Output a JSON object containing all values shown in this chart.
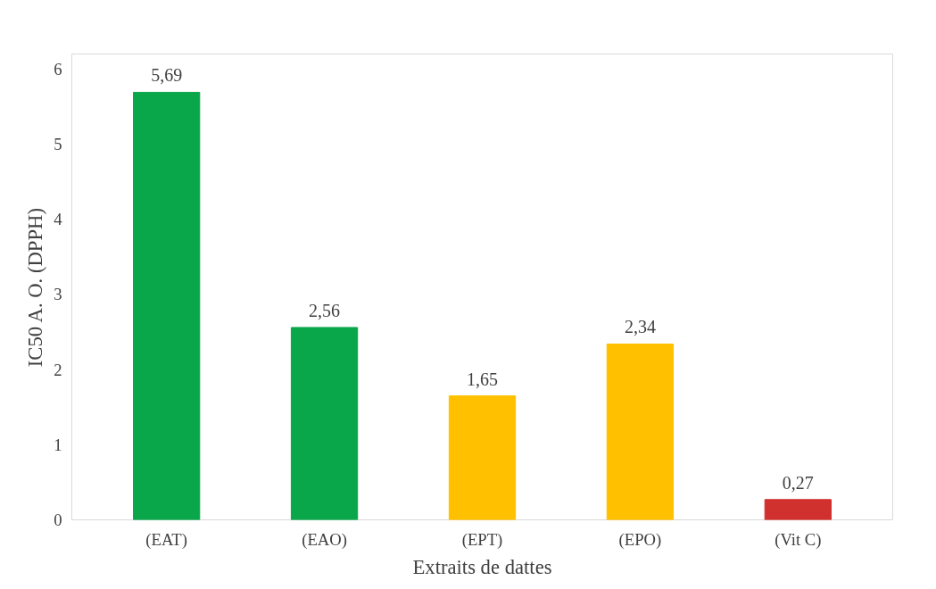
{
  "chart_data": {
    "type": "bar",
    "xlabel": "Extraits de dattes",
    "ylabel": "IC50 A. O. (DPPH)",
    "categories": [
      "(EAT)",
      "(EAO)",
      "(EPT)",
      "(EPO)",
      "(Vit C)"
    ],
    "values": [
      5.69,
      2.56,
      1.65,
      2.34,
      0.27
    ],
    "colors": [
      "#0aa64a",
      "#0aa64a",
      "#ffc000",
      "#ffc000",
      "#d0302e"
    ],
    "value_labels": [
      "5,69",
      "2,56",
      "1,65",
      "2,34",
      "0,27"
    ],
    "ylim": [
      0,
      6.2
    ],
    "yticks": [
      0,
      1,
      2,
      3,
      4,
      5,
      6
    ],
    "grid": false
  }
}
